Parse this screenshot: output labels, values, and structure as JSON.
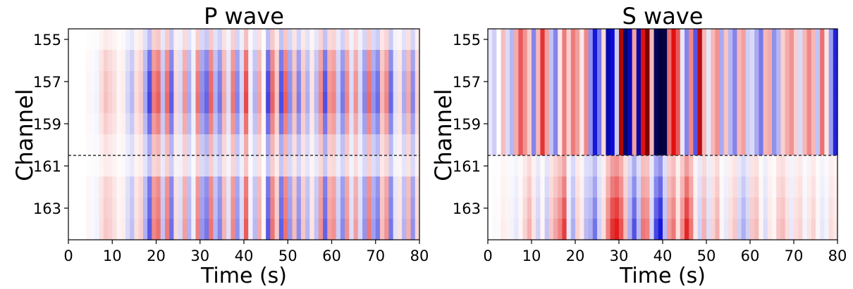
{
  "chart_data": [
    {
      "type": "heatmap",
      "title": "P wave",
      "xlabel": "Time (s)",
      "ylabel": "Channel",
      "xlim": [
        0,
        80
      ],
      "ylim": [
        154.5,
        164.5
      ],
      "xticks": [
        0,
        10,
        20,
        30,
        40,
        50,
        60,
        70,
        80
      ],
      "yticks": [
        155,
        157,
        159,
        161,
        163
      ],
      "x": [
        0,
        1,
        2,
        3,
        4,
        5,
        6,
        7,
        8,
        9,
        10,
        11,
        12,
        13,
        14,
        15,
        16,
        17,
        18,
        19,
        20,
        21,
        22,
        23,
        24,
        25,
        26,
        27,
        28,
        29,
        30,
        31,
        32,
        33,
        34,
        35,
        36,
        37,
        38,
        39,
        40,
        41,
        42,
        43,
        44,
        45,
        46,
        47,
        48,
        49,
        50,
        51,
        52,
        53,
        54,
        55,
        56,
        57,
        58,
        59,
        60,
        61,
        62,
        63,
        64,
        65,
        66,
        67,
        68,
        69,
        70,
        71,
        72,
        73,
        74,
        75,
        76,
        77,
        78,
        79
      ],
      "channels": [
        155,
        156,
        157,
        158,
        159,
        160,
        161,
        162,
        163,
        164
      ],
      "colormap": {
        "negative": "#0b0bd8",
        "zero": "#ffffff",
        "positive": "#e01010"
      },
      "divider": {
        "channel_boundary": 160.5,
        "style": "dashed",
        "color": "#333333"
      },
      "values_upper": [
        0.0,
        0.0,
        0.0,
        0.0,
        0.05,
        -0.04,
        -0.06,
        0.18,
        0.33,
        0.25,
        0.18,
        0.06,
        0.1,
        -0.22,
        -0.36,
        0.18,
        0.28,
        -0.45,
        -0.95,
        0.69,
        0.83,
        -0.35,
        0.77,
        -0.83,
        0.23,
        -0.21,
        0.56,
        -0.45,
        -0.1,
        0.73,
        -0.6,
        -0.79,
        0.82,
        -0.42,
        -0.7,
        0.45,
        -0.18,
        0.71,
        -0.64,
        -0.24,
        0.95,
        -0.09,
        -0.4,
        0.49,
        0.06,
        -0.95,
        0.81,
        0.32,
        -0.91,
        0.83,
        -0.6,
        0.39,
        -0.66,
        0.33,
        -0.42,
        0.15,
        -0.37,
        0.64,
        -0.9,
        0.56,
        0.64,
        -0.29,
        -0.68,
        0.63,
        -0.2,
        0.58,
        -0.21,
        -0.62,
        0.78,
        -0.55,
        -0.75,
        0.38,
        0.63,
        -0.78,
        -0.17,
        0.17,
        -0.44,
        0.46,
        -0.63,
        0.24
      ],
      "values_lower": [
        0.0,
        0.0,
        0.0,
        0.0,
        0.04,
        -0.03,
        -0.05,
        0.13,
        0.23,
        0.2,
        0.13,
        0.05,
        0.07,
        -0.15,
        -0.26,
        0.13,
        0.2,
        -0.32,
        -0.68,
        0.5,
        0.59,
        -0.25,
        0.55,
        -0.59,
        0.16,
        -0.15,
        0.4,
        -0.32,
        -0.07,
        0.53,
        -0.43,
        -0.56,
        0.58,
        -0.3,
        -0.5,
        0.32,
        -0.13,
        0.5,
        -0.45,
        -0.17,
        0.68,
        -0.06,
        -0.29,
        0.35,
        0.04,
        -0.68,
        0.58,
        0.23,
        -0.65,
        0.59,
        -0.43,
        0.28,
        -0.47,
        0.24,
        -0.3,
        0.11,
        -0.26,
        0.46,
        -0.64,
        0.4,
        0.46,
        -0.21,
        -0.48,
        0.45,
        -0.14,
        0.41,
        -0.15,
        -0.44,
        0.56,
        -0.39,
        -0.54,
        0.27,
        0.45,
        -0.56,
        -0.12,
        0.12,
        -0.31,
        0.33,
        -0.45,
        0.17
      ],
      "channel_scale": [
        0.28,
        0.6,
        0.75,
        0.8,
        0.62,
        0.38,
        0.35,
        0.82,
        0.9,
        1.0
      ]
    },
    {
      "type": "heatmap",
      "title": "S wave",
      "xlabel": "Time (s)",
      "ylabel": "Channel",
      "xlim": [
        0,
        80
      ],
      "ylim": [
        154.5,
        164.5
      ],
      "xticks": [
        0,
        10,
        20,
        30,
        40,
        50,
        60,
        70,
        80
      ],
      "yticks": [
        155,
        157,
        159,
        161,
        163
      ],
      "x": [
        0,
        1,
        2,
        3,
        4,
        5,
        6,
        7,
        8,
        9,
        10,
        11,
        12,
        13,
        14,
        15,
        16,
        17,
        18,
        19,
        20,
        21,
        22,
        23,
        24,
        25,
        26,
        27,
        28,
        29,
        30,
        31,
        32,
        33,
        34,
        35,
        36,
        37,
        38,
        39,
        40,
        41,
        42,
        43,
        44,
        45,
        46,
        47,
        48,
        49,
        50,
        51,
        52,
        53,
        54,
        55,
        56,
        57,
        58,
        59,
        60,
        61,
        62,
        63,
        64,
        65,
        66,
        67,
        68,
        69,
        70,
        71,
        72,
        73,
        74,
        75,
        76,
        77,
        78,
        79
      ],
      "channels": [
        155,
        156,
        157,
        158,
        159,
        160,
        161,
        162,
        163,
        164
      ],
      "colormap": {
        "negative": "#0b0bd8",
        "zero": "#ffffff",
        "positive": "#e01010"
      },
      "divider": {
        "channel_boundary": 160.5,
        "style": "dashed",
        "color": "#333333"
      },
      "values_upper": [
        -0.1,
        -0.2,
        0.0,
        0.28,
        -0.15,
        -0.3,
        0.35,
        0.7,
        0.45,
        0.22,
        -0.5,
        0.3,
        0.85,
        0.4,
        -0.25,
        -0.5,
        0.1,
        0.55,
        0.2,
        0.55,
        0.4,
        0.1,
        0.5,
        -0.45,
        -0.95,
        -0.55,
        0.15,
        -1.25,
        -1.0,
        -0.2,
        1.45,
        -1.6,
        -1.2,
        0.4,
        -1.3,
        1.0,
        1.9,
        0.3,
        -1.7,
        -1.9,
        -1.8,
        0.6,
        1.0,
        0.7,
        -0.1,
        -0.5,
        0.5,
        -0.7,
        1.3,
        0.3,
        -0.1,
        0.3,
        0.45,
        -0.35,
        0.25,
        -0.3,
        -0.5,
        0.3,
        0.4,
        -0.2,
        -0.15,
        -0.35,
        -0.55,
        0.3,
        0.35,
        -0.45,
        -0.3,
        0.2,
        0.35,
        0.45,
        0.2,
        -0.15,
        0.3,
        0.5,
        0.3,
        -0.25,
        0.6,
        0.1,
        -0.4,
        -0.9
      ],
      "values_lower": [
        0.0,
        -0.02,
        0.02,
        0.08,
        0.06,
        -0.05,
        -0.1,
        0.05,
        0.2,
        0.35,
        0.12,
        -0.2,
        0.05,
        -0.25,
        0.25,
        0.4,
        0.55,
        0.85,
        -0.1,
        -0.35,
        0.2,
        0.1,
        -0.3,
        -0.35,
        -0.6,
        -0.2,
        0.15,
        0.55,
        0.9,
        1.0,
        0.75,
        0.3,
        -0.35,
        -0.75,
        -0.3,
        0.6,
        0.55,
        -0.2,
        -0.8,
        -1.0,
        -0.3,
        0.45,
        0.6,
        0.15,
        0.5,
        0.95,
        0.6,
        0.1,
        -0.2,
        0.35,
        -0.15,
        0.2,
        0.35,
        0.05,
        -0.1,
        0.15,
        0.25,
        -0.2,
        -0.35,
        -0.2,
        0.25,
        0.3,
        0.05,
        -0.15,
        0.1,
        0.05,
        0.25,
        0.3,
        0.15,
        -0.1,
        0.15,
        0.2,
        -0.05,
        0.12,
        0.2,
        0.05,
        -0.1,
        -0.05,
        0.15,
        0.1
      ],
      "channel_scale": [
        1.0,
        1.0,
        1.0,
        1.0,
        1.0,
        1.0,
        0.45,
        0.62,
        0.8,
        0.95
      ]
    }
  ]
}
